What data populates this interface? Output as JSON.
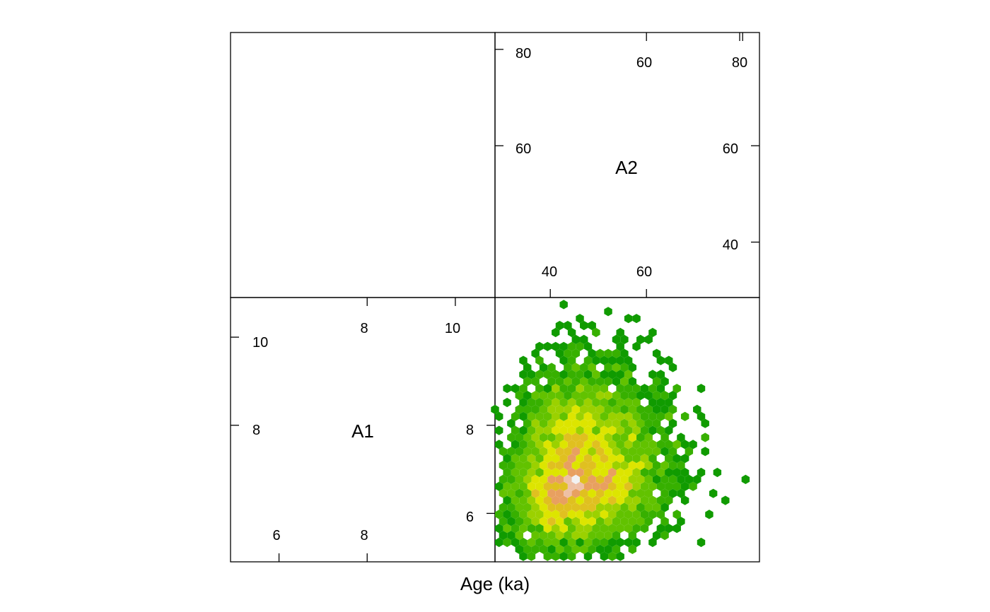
{
  "chart_data": {
    "type": "splom-hexbin",
    "xlabel": "Age (ka)",
    "variables": [
      "A1",
      "A2"
    ],
    "panels": {
      "A1": {
        "range": [
          4.9,
          10.9
        ],
        "ticks_major": [
          8,
          10
        ],
        "ticks_minor": [
          6,
          8
        ],
        "tick_labels_major": [
          "8",
          "10"
        ],
        "tick_labels_minor": [
          "6",
          "8"
        ]
      },
      "A2": {
        "range": [
          28.5,
          83.5
        ],
        "ticks_major": [
          60,
          80
        ],
        "ticks_minor": [
          40,
          60
        ],
        "tick_labels_major": [
          "60",
          "80"
        ],
        "tick_labels_minor": [
          "40",
          "60"
        ]
      }
    },
    "hexbin": {
      "x_variable": "A2",
      "y_variable": "A1",
      "center": [
        46,
        6.9
      ],
      "spread": [
        6.5,
        0.75
      ],
      "n_points": 5000,
      "color_scale": [
        "#109b00",
        "#37b000",
        "#62c200",
        "#9bd100",
        "#dde500",
        "#e0c020",
        "#e8a060",
        "#eec0a4",
        "#f2f2f2"
      ],
      "outliers": [
        [
          80.5,
          6.7
        ],
        [
          74.5,
          7.0
        ],
        [
          74.5,
          6.4
        ],
        [
          73.0,
          6.05
        ],
        [
          71.5,
          7.75
        ],
        [
          71.0,
          8.2
        ],
        [
          67.5,
          5.8
        ],
        [
          66.0,
          5.6
        ],
        [
          63.5,
          5.5
        ],
        [
          62.0,
          5.5
        ],
        [
          42.5,
          10.7
        ],
        [
          46.0,
          10.4
        ],
        [
          58.0,
          10.4
        ],
        [
          60.0,
          9.95
        ],
        [
          34.5,
          9.2
        ],
        [
          33.5,
          8.75
        ],
        [
          32.0,
          7.2
        ],
        [
          47.5,
          5.4
        ]
      ]
    }
  }
}
